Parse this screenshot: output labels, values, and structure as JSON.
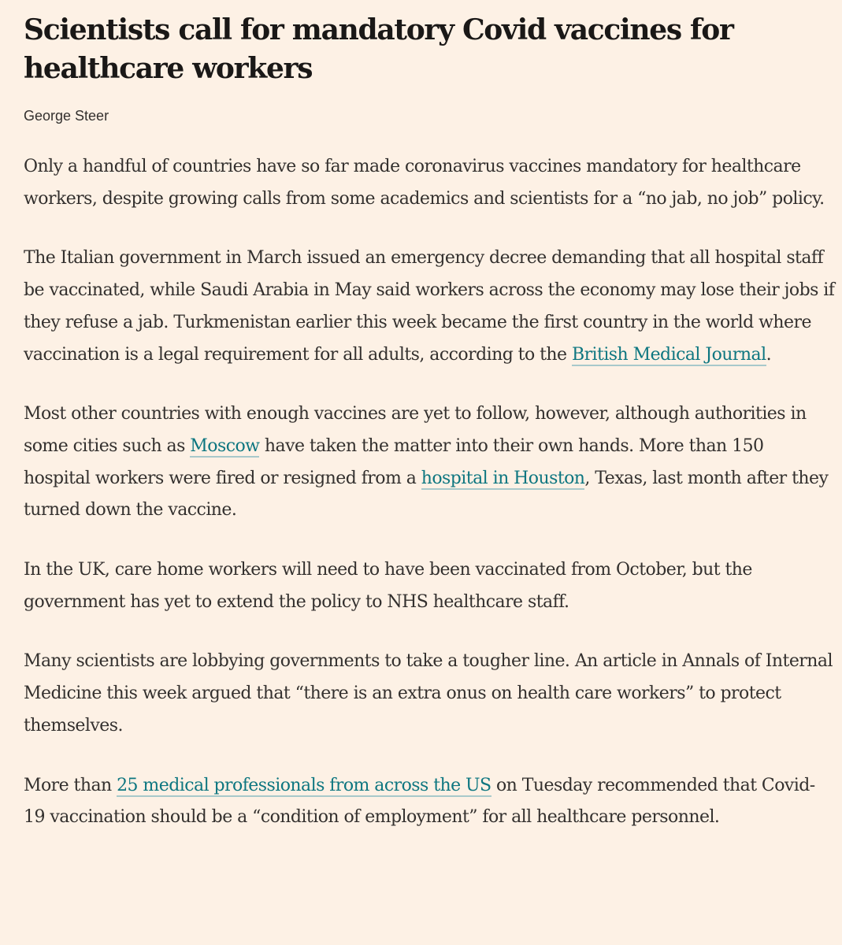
{
  "article": {
    "headline": "Scientists call for mandatory Covid vaccines for healthcare workers",
    "byline": "George Steer",
    "paragraphs": [
      {
        "text1": "Only a handful of countries have so far made coronavirus vaccines mandatory for healthcare workers, despite growing calls from some academics and scientists for a “no jab, no job” policy."
      },
      {
        "text1": "The Italian government in March issued an emergency decree demanding that all hospital staff be vaccinated, while Saudi Arabia in May said workers across the economy may lose their jobs if they refuse a jab. Turkmenistan earlier this week became the first country in the world where vaccination is a legal requirement for all adults, according to the ",
        "link1": "British Medical Journal",
        "text2": "."
      },
      {
        "text1": "Most other countries with enough vaccines are yet to follow, however, although authorities in some cities such as ",
        "link1": "Moscow",
        "text2": " have taken the matter into their own hands. More than 150 hospital workers were fired or resigned from a ",
        "link2": "hospital in Houston",
        "text3": ", Texas, last month after they turned down the vaccine."
      },
      {
        "text1": "In the UK, care home workers will need to have been vaccinated from October, but the government has yet to extend the policy to NHS healthcare staff."
      },
      {
        "text1": "Many scientists are lobbying governments to take a tougher line. An article in Annals of Internal Medicine this week argued that “there is an extra onus on health care workers” to protect themselves."
      },
      {
        "text1": "More than ",
        "link1": "25 medical professionals from across the US",
        "text2": " on Tuesday recommended that Covid-19 vaccination should be a “condition of employment” for all healthcare personnel."
      }
    ]
  },
  "colors": {
    "background": "#fdf1e5",
    "text": "#33302e",
    "headline": "#1a1817",
    "link": "#0d7680"
  }
}
